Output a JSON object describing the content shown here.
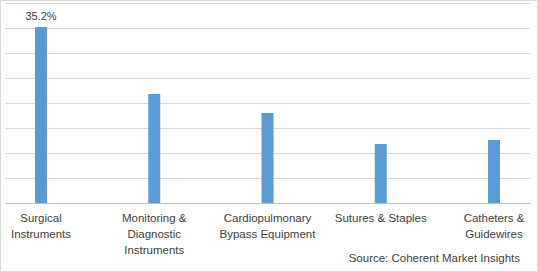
{
  "chart_data": {
    "type": "bar",
    "categories": [
      "Surgical Instruments",
      "Monitoring & Diagnostic Instruments",
      "Cardiopulmonary Bypass Equipment",
      "Sutures & Staples",
      "Catheters & Guidewires"
    ],
    "values": [
      35.2,
      21.8,
      18.0,
      11.8,
      12.6
    ],
    "value_labels": [
      "35.2%",
      null,
      null,
      null,
      null
    ],
    "data_labels": true,
    "color": "#5b9bd5",
    "ylim": [
      0,
      40
    ],
    "yticks": [
      0,
      5,
      10,
      15,
      20,
      25,
      30,
      35,
      40
    ],
    "grid": true,
    "tick_labels": "x",
    "source": "Source: Coherent Market Insights"
  }
}
